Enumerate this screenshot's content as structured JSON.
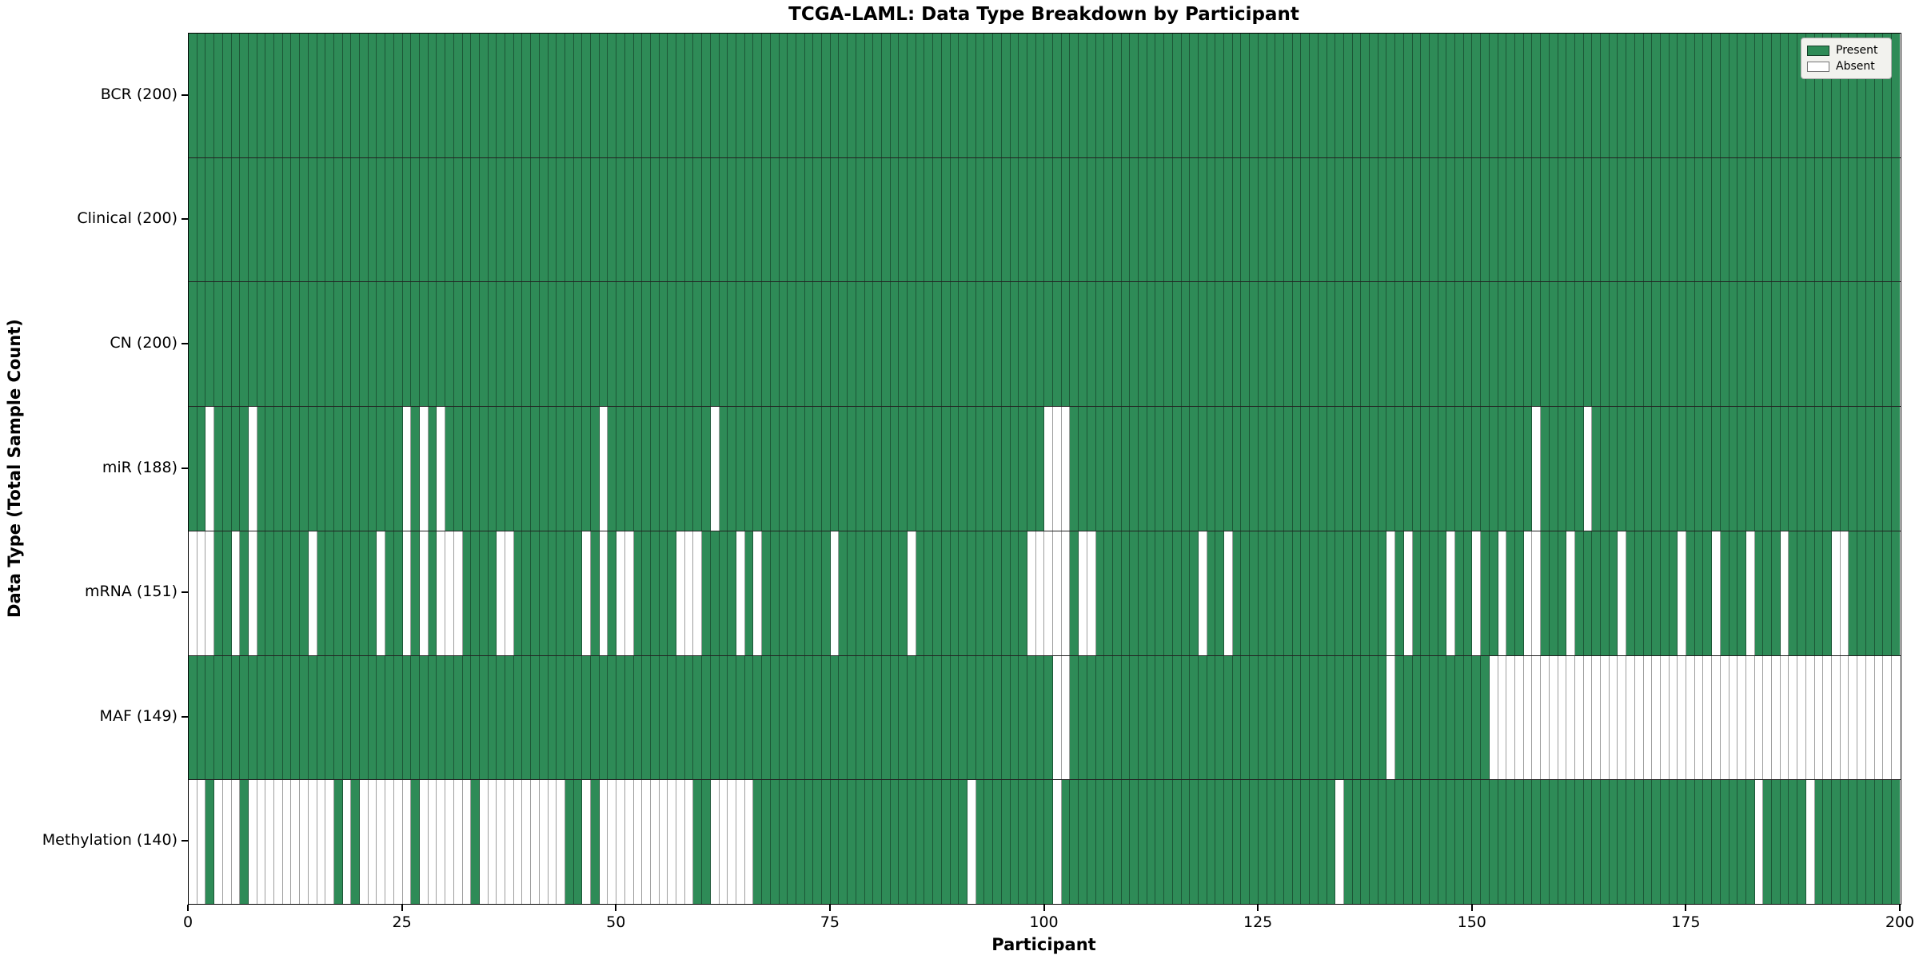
{
  "title": "TCGA-LAML: Data Type Breakdown by Participant",
  "xlabel": "Participant",
  "ylabel": "Data Type (Total Sample Count)",
  "legend": {
    "present_label": "Present",
    "absent_label": "Absent"
  },
  "colors": {
    "present": "#2e8b57",
    "absent": "#ffffff",
    "grid_line": "rgba(0,0,0,0.38)",
    "row_separator": "#222222",
    "spine": "#000000",
    "legend_bg": "#f2f2ee"
  },
  "x_ticks": [
    0,
    25,
    50,
    75,
    100,
    125,
    150,
    175,
    200
  ],
  "chart_data": {
    "type": "heatmap",
    "n_participants": 200,
    "x_range": [
      0,
      200
    ],
    "legend_position": "upper right",
    "rows": [
      {
        "name": "BCR",
        "label": "BCR (200)",
        "total": 200,
        "absent": []
      },
      {
        "name": "Clinical",
        "label": "Clinical (200)",
        "total": 200,
        "absent": []
      },
      {
        "name": "CN",
        "label": "CN (200)",
        "total": 200,
        "absent": []
      },
      {
        "name": "miR",
        "label": "miR (188)",
        "total": 188,
        "absent": [
          2,
          7,
          25,
          27,
          29,
          48,
          61,
          100,
          101,
          102,
          157,
          163
        ]
      },
      {
        "name": "mRNA",
        "label": "mRNA (151)",
        "total": 151,
        "absent": [
          0,
          1,
          2,
          5,
          7,
          14,
          22,
          25,
          27,
          29,
          30,
          31,
          36,
          37,
          46,
          48,
          50,
          51,
          57,
          58,
          59,
          64,
          66,
          75,
          84,
          98,
          99,
          100,
          101,
          102,
          104,
          105,
          118,
          121,
          140,
          142,
          147,
          150,
          153,
          156,
          157,
          161,
          167,
          174,
          178,
          182,
          186,
          192,
          193
        ]
      },
      {
        "name": "MAF",
        "label": "MAF (149)",
        "total": 149,
        "absent": [
          101,
          102,
          140,
          152,
          153,
          154,
          155,
          156,
          157,
          158,
          159,
          160,
          161,
          162,
          163,
          164,
          165,
          166,
          167,
          168,
          169,
          170,
          171,
          172,
          173,
          174,
          175,
          176,
          177,
          178,
          179,
          180,
          181,
          182,
          183,
          184,
          185,
          186,
          187,
          188,
          189,
          190,
          191,
          192,
          193,
          194,
          195,
          196,
          197,
          198,
          199
        ]
      },
      {
        "name": "Methylation",
        "label": "Methylation (140)",
        "total": 140,
        "absent": [
          0,
          1,
          3,
          4,
          5,
          7,
          8,
          9,
          10,
          11,
          12,
          13,
          14,
          15,
          16,
          18,
          20,
          21,
          22,
          23,
          24,
          25,
          27,
          28,
          29,
          30,
          31,
          32,
          34,
          35,
          36,
          37,
          38,
          39,
          40,
          41,
          42,
          43,
          46,
          48,
          49,
          50,
          51,
          52,
          53,
          54,
          55,
          56,
          57,
          58,
          61,
          62,
          63,
          64,
          65,
          91,
          101,
          134,
          183,
          189
        ]
      }
    ]
  }
}
